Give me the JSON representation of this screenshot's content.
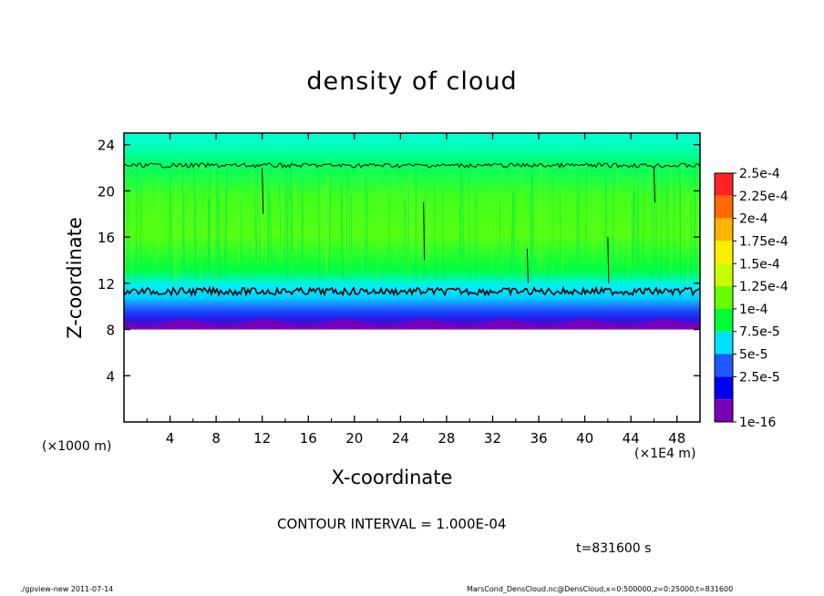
{
  "chart_data": {
    "type": "heatmap",
    "title": "density of cloud",
    "xlabel": "X-coordinate",
    "ylabel": "Z-coordinate",
    "x_unit_left": "(×1000 m)",
    "x_unit_right": "(×1E4 m)",
    "xlim": [
      0,
      50
    ],
    "ylim": [
      0,
      25
    ],
    "x_ticks": [
      4,
      8,
      12,
      16,
      20,
      24,
      28,
      32,
      36,
      40,
      44,
      48
    ],
    "y_ticks": [
      4,
      8,
      12,
      16,
      20,
      24
    ],
    "colorbar": {
      "labels": [
        "2.5e-4",
        "2.25e-4",
        "2e-4",
        "1.75e-4",
        "1.5e-4",
        "1.25e-4",
        "1e-4",
        "7.5e-5",
        "5e-5",
        "2.5e-5",
        "1e-16"
      ],
      "colors": [
        "#ff2222",
        "#ff6a00",
        "#ffb400",
        "#ffee00",
        "#c8ff00",
        "#66ff00",
        "#00ff33",
        "#00e0ff",
        "#1e5aff",
        "#0000ee",
        "#7a00b8"
      ]
    },
    "field": {
      "cloud_base_z": 8,
      "cloud_top_z": 25,
      "profile": [
        {
          "z": 8,
          "density": "1e-16"
        },
        {
          "z": 9,
          "density": "2.5e-5"
        },
        {
          "z": 10,
          "density": "5e-5"
        },
        {
          "z": 11,
          "density": "7.5e-5"
        },
        {
          "z": 12,
          "density": "1e-4"
        },
        {
          "z": 15,
          "density": "1.25e-4"
        },
        {
          "z": 21,
          "density": "1e-4"
        },
        {
          "z": 23,
          "density": "7.5e-5"
        }
      ],
      "contour_levels_z": [
        11.3,
        22.2
      ]
    },
    "contour_interval": "CONTOUR INTERVAL = 1.000E-04",
    "time_label": "t=831600 s"
  },
  "footer": {
    "program": "./gpview-new  2011-07-14",
    "source": "MarsCond_DensCloud.nc@DensCloud,x=0:500000,z=0:25000,t=831600"
  }
}
